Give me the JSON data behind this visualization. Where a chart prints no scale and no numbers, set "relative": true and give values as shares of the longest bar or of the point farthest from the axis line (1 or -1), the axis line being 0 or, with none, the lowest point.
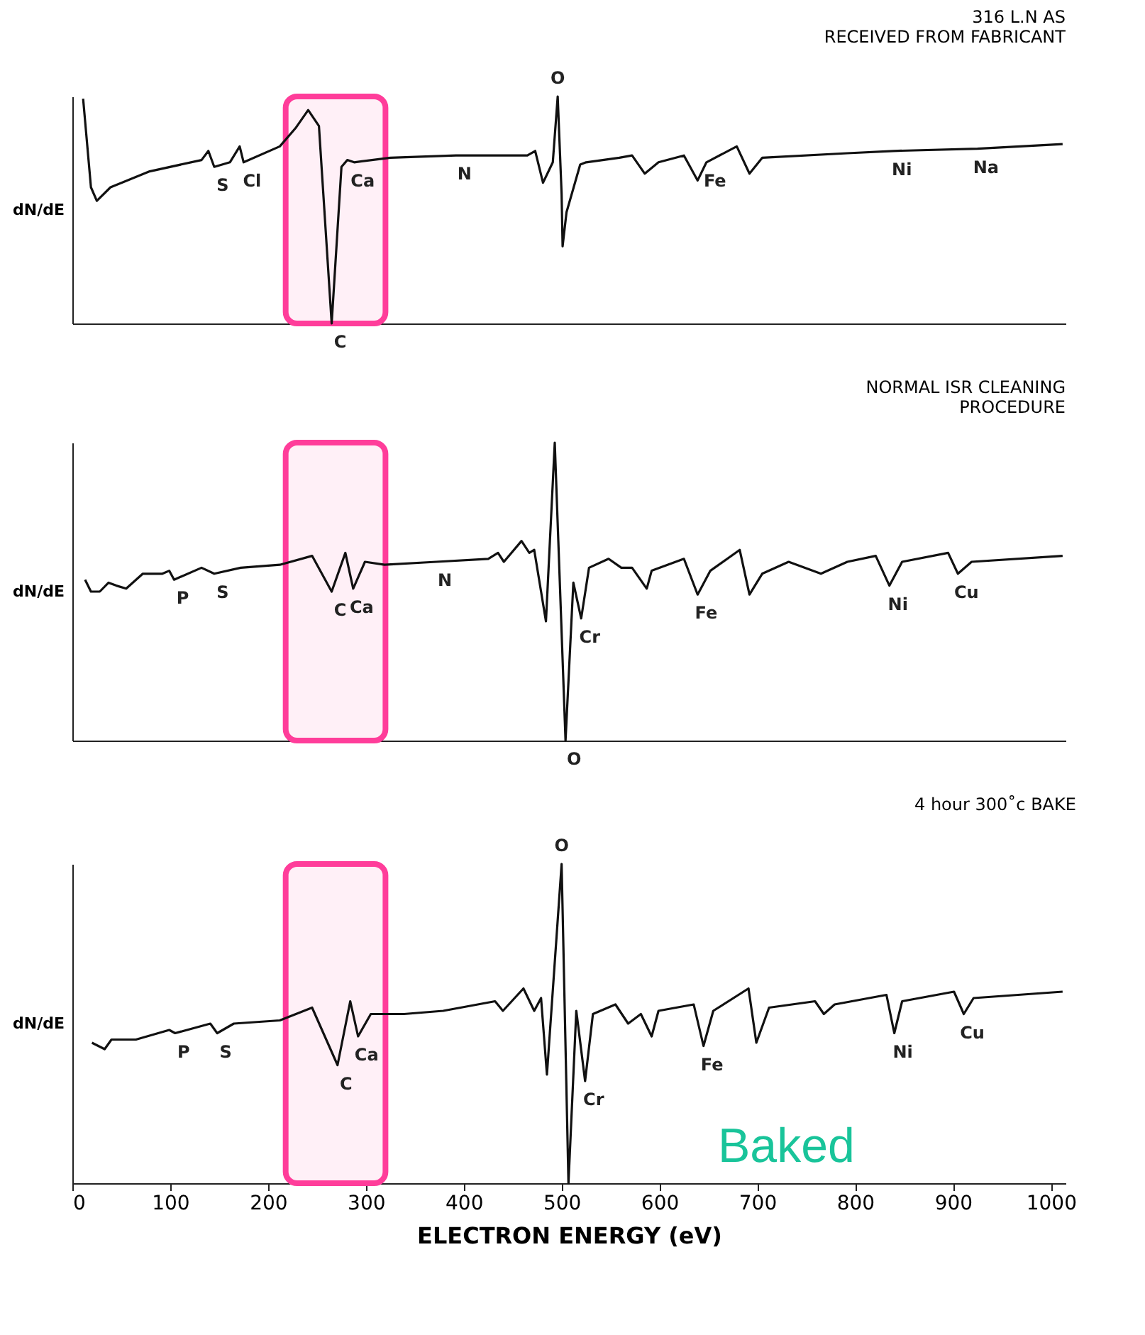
{
  "chart_data": [
    {
      "type": "line",
      "title": "316 L.N AS\nRECEIVED FROM FABRICANT",
      "ylabel": "dN/dE",
      "relative": true,
      "xlim": [
        0,
        1015
      ],
      "tick_labels": false,
      "series": [
        {
          "color": "#111111",
          "x": [
            11,
            19,
            25,
            39,
            79,
            132,
            139,
            145,
            161,
            171,
            175,
            212,
            228,
            241,
            252,
            265,
            275,
            281,
            288,
            325,
            392,
            465,
            473,
            481,
            491,
            496,
            500,
            501,
            505,
            519,
            525,
            559,
            572,
            585,
            599,
            625,
            639,
            648,
            679,
            692,
            705,
            792,
            839,
            925,
            1012
          ],
          "values": [
            0.99,
            0.6,
            0.54,
            0.6,
            0.67,
            0.72,
            0.76,
            0.69,
            0.71,
            0.78,
            0.71,
            0.78,
            0.86,
            0.94,
            0.87,
            0,
            0.69,
            0.72,
            0.71,
            0.73,
            0.74,
            0.74,
            0.76,
            0.62,
            0.71,
            1.0,
            0.57,
            0.34,
            0.49,
            0.7,
            0.71,
            0.73,
            0.74,
            0.66,
            0.71,
            0.74,
            0.63,
            0.71,
            0.78,
            0.66,
            0.73,
            0.75,
            0.76,
            0.77,
            0.79
          ]
        }
      ],
      "bands": [
        {
          "axis": "x",
          "from": 218,
          "to": 320,
          "color": "#ff3d9a"
        }
      ],
      "annotations": [
        {
          "text": "O",
          "x": 496,
          "y": 1.0
        },
        {
          "text": "S",
          "x": 145,
          "y": 0.69
        },
        {
          "text": "Cl",
          "x": 175,
          "y": 0.71
        },
        {
          "text": "C",
          "x": 265,
          "y": 0
        },
        {
          "text": "Ca",
          "x": 288,
          "y": 0.71
        },
        {
          "text": "N",
          "x": 392,
          "y": 0.74
        },
        {
          "text": "Fe",
          "x": 648,
          "y": 0.71
        },
        {
          "text": "Ni",
          "x": 839,
          "y": 0.76
        },
        {
          "text": "Na",
          "x": 925,
          "y": 0.77
        }
      ]
    },
    {
      "type": "line",
      "title": "NORMAL ISR CLEANING\nPROCEDURE",
      "ylabel": "dN/dE",
      "relative": true,
      "xlim": [
        0,
        1015
      ],
      "tick_labels": false,
      "series": [
        {
          "color": "#111111",
          "x": [
            13,
            19,
            28,
            37,
            45,
            55,
            72,
            92,
            99,
            104,
            132,
            145,
            172,
            212,
            245,
            265,
            279,
            287,
            299,
            319,
            372,
            425,
            435,
            441,
            459,
            467,
            472,
            484,
            493,
            504,
            512,
            520,
            528,
            548,
            561,
            572,
            587,
            592,
            625,
            639,
            652,
            682,
            692,
            705,
            732,
            765,
            792,
            821,
            835,
            848,
            895,
            905,
            919,
            1012
          ],
          "values": [
            0.54,
            0.5,
            0.5,
            0.53,
            0.52,
            0.51,
            0.56,
            0.56,
            0.57,
            0.54,
            0.58,
            0.56,
            0.58,
            0.59,
            0.62,
            0.5,
            0.63,
            0.51,
            0.6,
            0.59,
            0.6,
            0.61,
            0.63,
            0.6,
            0.67,
            0.63,
            0.64,
            0.4,
            1.0,
            0,
            0.53,
            0.41,
            0.58,
            0.61,
            0.58,
            0.58,
            0.51,
            0.57,
            0.61,
            0.49,
            0.57,
            0.64,
            0.49,
            0.56,
            0.6,
            0.56,
            0.6,
            0.62,
            0.52,
            0.6,
            0.63,
            0.56,
            0.6,
            0.62
          ]
        }
      ],
      "bands": [
        {
          "axis": "x",
          "from": 218,
          "to": 320,
          "color": "#ff3d9a"
        }
      ],
      "annotations": [
        {
          "text": "P",
          "x": 104,
          "y": 0.54
        },
        {
          "text": "S",
          "x": 145,
          "y": 0.56
        },
        {
          "text": "C",
          "x": 265,
          "y": 0.5
        },
        {
          "text": "Ca",
          "x": 287,
          "y": 0.51
        },
        {
          "text": "N",
          "x": 372,
          "y": 0.6
        },
        {
          "text": "Cr",
          "x": 520,
          "y": 0.41
        },
        {
          "text": "O",
          "x": 504,
          "y": 0
        },
        {
          "text": "Fe",
          "x": 639,
          "y": 0.49
        },
        {
          "text": "Ni",
          "x": 835,
          "y": 0.52
        },
        {
          "text": "Cu",
          "x": 905,
          "y": 0.56
        }
      ]
    },
    {
      "type": "line",
      "title": "4 hour 300˚c BAKE",
      "ylabel": "dN/dE",
      "xlabel": "ELECTRON ENERGY (eV)",
      "relative": true,
      "xlim": [
        0,
        1015
      ],
      "xticks": [
        0,
        100,
        200,
        300,
        400,
        500,
        600,
        700,
        800,
        900,
        1000
      ],
      "tick_labels": "x",
      "series": [
        {
          "color": "#111111",
          "x": [
            20,
            33,
            40,
            65,
            99,
            105,
            141,
            148,
            165,
            212,
            245,
            271,
            284,
            292,
            305,
            339,
            379,
            432,
            440,
            461,
            472,
            479,
            485,
            500,
            507,
            515,
            524,
            532,
            555,
            568,
            581,
            592,
            599,
            635,
            645,
            655,
            691,
            699,
            712,
            759,
            768,
            779,
            832,
            840,
            848,
            901,
            911,
            921,
            1012
          ],
          "values": [
            0.44,
            0.42,
            0.45,
            0.45,
            0.48,
            0.47,
            0.5,
            0.47,
            0.5,
            0.51,
            0.55,
            0.37,
            0.57,
            0.46,
            0.53,
            0.53,
            0.54,
            0.57,
            0.54,
            0.61,
            0.54,
            0.58,
            0.34,
            1.0,
            0,
            0.54,
            0.32,
            0.53,
            0.56,
            0.5,
            0.53,
            0.46,
            0.54,
            0.56,
            0.43,
            0.54,
            0.61,
            0.44,
            0.55,
            0.57,
            0.53,
            0.56,
            0.59,
            0.47,
            0.57,
            0.6,
            0.53,
            0.58,
            0.6
          ]
        }
      ],
      "bands": [
        {
          "axis": "x",
          "from": 218,
          "to": 320,
          "color": "#ff3d9a"
        }
      ],
      "annotations": [
        {
          "text": "P",
          "x": 105,
          "y": 0.47
        },
        {
          "text": "S",
          "x": 148,
          "y": 0.47
        },
        {
          "text": "C",
          "x": 271,
          "y": 0.37
        },
        {
          "text": "Ca",
          "x": 292,
          "y": 0.46
        },
        {
          "text": "Cr",
          "x": 524,
          "y": 0.32
        },
        {
          "text": "O",
          "x": 500,
          "y": 1.0
        },
        {
          "text": "Fe",
          "x": 645,
          "y": 0.43
        },
        {
          "text": "Ni",
          "x": 840,
          "y": 0.47
        },
        {
          "text": "Cu",
          "x": 911,
          "y": 0.53
        },
        "Baked"
      ]
    }
  ]
}
